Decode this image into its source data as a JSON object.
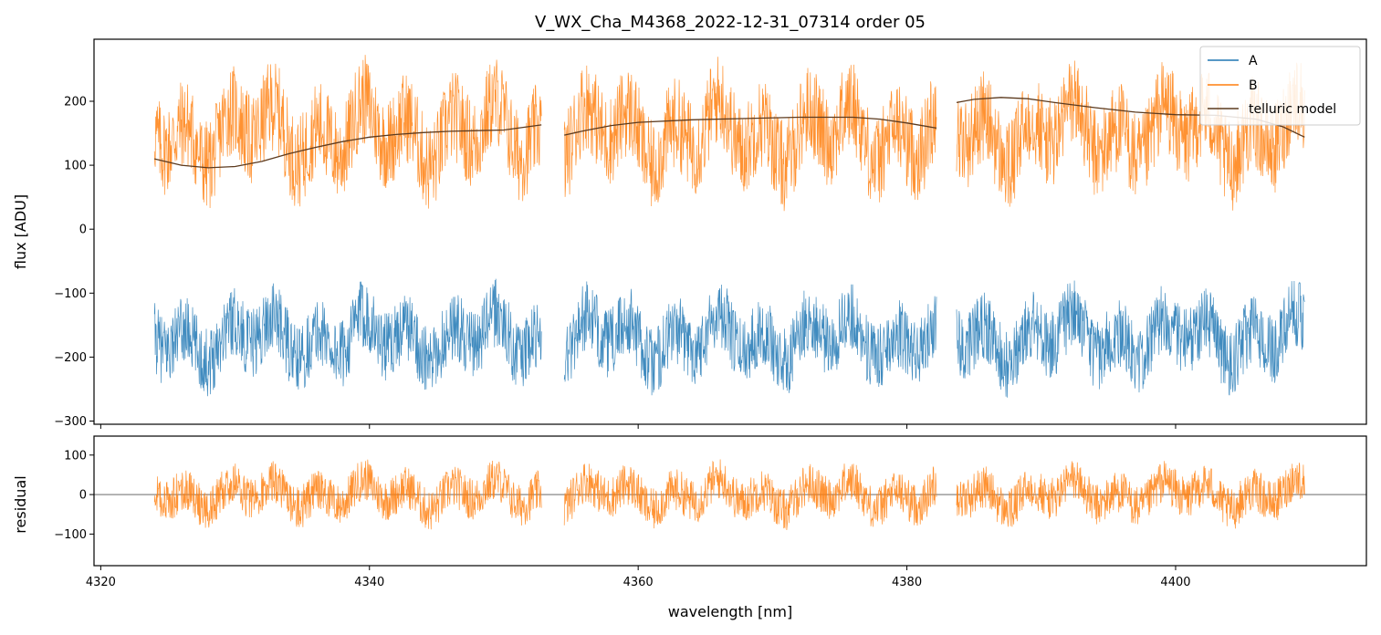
{
  "title": "V_WX_Cha_M4368_2022-12-31_07314  order 05",
  "colors": {
    "A": "#1f77b4",
    "B": "#ff7f0e",
    "model": "#5c3a1e",
    "zero_line": "#555555"
  },
  "chart_data": [
    {
      "type": "line",
      "panel": "top",
      "ylabel": "flux [ADU]",
      "ylim": [
        -305,
        297
      ],
      "xlim": [
        4319.5,
        4414.2
      ],
      "yticks": [
        -300,
        -200,
        -100,
        0,
        100,
        200
      ],
      "ytick_labels": [
        "−300",
        "−200",
        "−100",
        "0",
        "100",
        "200"
      ],
      "grid": false,
      "legend": {
        "placement": "top-right",
        "entries": [
          "A",
          "B",
          "telluric model"
        ]
      },
      "segments": [
        [
          4324.0,
          4352.8
        ],
        [
          4354.5,
          4382.2
        ],
        [
          4383.7,
          4409.6
        ]
      ],
      "series": [
        {
          "name": "A",
          "style": "noisy",
          "baseline": -170,
          "noise": 45,
          "range": [
            -305,
            80
          ]
        },
        {
          "name": "B",
          "style": "noisy",
          "baseline": 150,
          "noise": 60,
          "range": [
            -20,
            297
          ]
        },
        {
          "name": "telluric model",
          "style": "smooth",
          "points": [
            [
              4324.0,
              110
            ],
            [
              4326.0,
              100
            ],
            [
              4328.0,
              96
            ],
            [
              4330.0,
              98
            ],
            [
              4332.0,
              106
            ],
            [
              4334.0,
              118
            ],
            [
              4336.0,
              128
            ],
            [
              4338.0,
              137
            ],
            [
              4340.0,
              144
            ],
            [
              4342.0,
              148
            ],
            [
              4344.0,
              151
            ],
            [
              4346.0,
              153
            ],
            [
              4348.0,
              154
            ],
            [
              4350.0,
              155
            ],
            [
              4352.8,
              163
            ],
            null,
            [
              4354.5,
              147
            ],
            [
              4356.0,
              154
            ],
            [
              4358.0,
              162
            ],
            [
              4360.0,
              167
            ],
            [
              4364.0,
              171
            ],
            [
              4368.0,
              173
            ],
            [
              4372.0,
              175
            ],
            [
              4376.0,
              175
            ],
            [
              4378.0,
              172
            ],
            [
              4380.0,
              166
            ],
            [
              4382.2,
              158
            ],
            null,
            [
              4383.7,
              198
            ],
            [
              4385.0,
              203
            ],
            [
              4387.0,
              206
            ],
            [
              4389.0,
              204
            ],
            [
              4391.0,
              198
            ],
            [
              4394.0,
              190
            ],
            [
              4397.0,
              183
            ],
            [
              4400.0,
              179
            ],
            [
              4403.0,
              178
            ],
            [
              4406.0,
              172
            ],
            [
              4408.0,
              160
            ],
            [
              4409.6,
              144
            ]
          ]
        }
      ]
    },
    {
      "type": "line",
      "panel": "bottom",
      "ylabel": "residual",
      "xlabel": "wavelength [nm]",
      "ylim": [
        -180,
        148
      ],
      "xlim": [
        4319.5,
        4414.2
      ],
      "yticks": [
        -100,
        0,
        100
      ],
      "ytick_labels": [
        "−100",
        "0",
        "100"
      ],
      "xticks": [
        4320,
        4340,
        4360,
        4380,
        4400
      ],
      "xtick_labels": [
        "4320",
        "4340",
        "4360",
        "4380",
        "4400"
      ],
      "grid": false,
      "segments": [
        [
          4324.0,
          4352.8
        ],
        [
          4354.5,
          4382.2
        ],
        [
          4383.7,
          4409.6
        ]
      ],
      "series": [
        {
          "name": "B",
          "style": "noisy",
          "baseline": 0,
          "noise": 45,
          "range": [
            -180,
            148
          ]
        }
      ],
      "hline": 0
    }
  ]
}
